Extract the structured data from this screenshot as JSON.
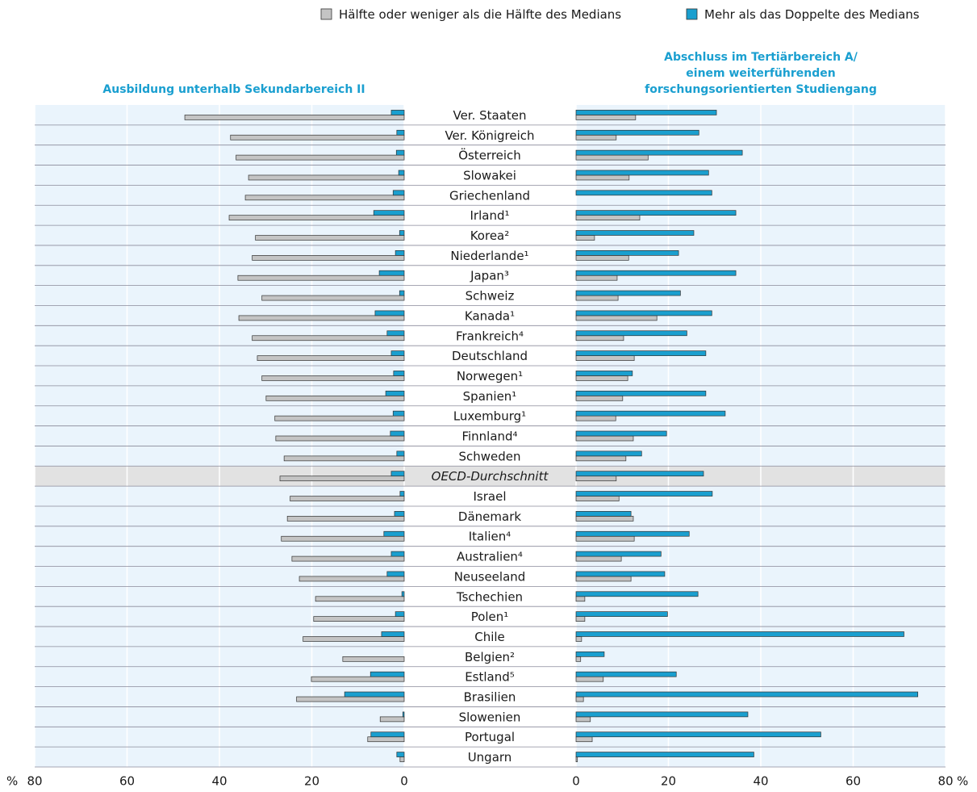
{
  "chart_data": {
    "type": "butterfly",
    "x_unit": "%",
    "legend": [
      {
        "name": "Hälfte oder weniger als die Hälfte des Medians",
        "color": "#c4c4c4"
      },
      {
        "name": "Mehr als das Doppelte des Medians",
        "color": "#1a9fcf"
      }
    ],
    "highlight_index": 18,
    "categories": [
      "Ver. Staaten",
      "Ver. Königreich",
      "Österreich",
      "Slowakei",
      "Griechenland",
      "Irland¹",
      "Korea²",
      "Niederlande¹",
      "Japan³",
      "Schweiz",
      "Kanada¹",
      "Frankreich⁴",
      "Deutschland",
      "Norwegen¹",
      "Spanien¹",
      "Luxemburg¹",
      "Finnland⁴",
      "Schweden",
      "OECD-Durchschnitt",
      "Israel",
      "Dänemark",
      "Italien⁴",
      "Australien⁴",
      "Neuseeland",
      "Tschechien",
      "Polen¹",
      "Chile",
      "Belgien²",
      "Estland⁵",
      "Brasilien",
      "Slowenien",
      "Portugal",
      "Ungarn"
    ],
    "panels": [
      {
        "title_lines": [
          "Ausbildung unterhalb Sekundarbereich II"
        ],
        "xlim": [
          80,
          0
        ],
        "xticks": [
          80,
          60,
          40,
          20,
          0
        ],
        "series": [
          {
            "values": [
              47.5,
              37.6,
              36.4,
              33.7,
              34.4,
              37.9,
              32.2,
              32.9,
              36.0,
              30.8,
              35.8,
              32.9,
              31.8,
              30.8,
              29.9,
              28.0,
              27.8,
              26.0,
              26.9,
              24.7,
              25.3,
              26.6,
              24.3,
              22.7,
              19.2,
              19.6,
              21.9,
              13.3,
              20.1,
              23.3,
              5.2,
              7.9,
              0.9
            ]
          },
          {
            "values": [
              2.8,
              1.6,
              1.7,
              1.2,
              2.4,
              6.6,
              1.0,
              1.9,
              5.4,
              1.0,
              6.3,
              3.7,
              2.8,
              2.3,
              4.0,
              2.4,
              3.0,
              1.6,
              2.8,
              0.9,
              2.1,
              4.4,
              2.8,
              3.7,
              0.5,
              1.9,
              4.9,
              null,
              7.3,
              12.9,
              0.3,
              7.2,
              1.6
            ]
          }
        ]
      },
      {
        "title_lines": [
          "Abschluss im Tertiärbereich A/",
          "einem weiterführenden",
          "forschungsorientierten Studiengang"
        ],
        "xlim": [
          0,
          80
        ],
        "xticks": [
          0,
          20,
          40,
          60,
          80
        ],
        "series": [
          {
            "values": [
              12.9,
              8.7,
              15.6,
              11.5,
              null,
              13.8,
              4.0,
              11.4,
              8.9,
              9.1,
              17.5,
              10.3,
              12.6,
              11.2,
              10.1,
              8.6,
              12.4,
              10.8,
              8.7,
              9.3,
              12.4,
              12.6,
              9.8,
              11.9,
              1.9,
              1.9,
              1.2,
              1.0,
              5.9,
              1.6,
              3.1,
              3.5,
              0.3
            ]
          },
          {
            "values": [
              30.4,
              26.6,
              36.0,
              28.7,
              29.4,
              34.6,
              25.5,
              22.2,
              34.6,
              22.6,
              29.4,
              24.0,
              28.1,
              12.2,
              28.1,
              32.3,
              19.6,
              14.2,
              27.6,
              29.5,
              11.9,
              24.5,
              18.4,
              19.2,
              26.4,
              19.8,
              71.0,
              6.1,
              21.7,
              74.0,
              37.2,
              53.0,
              38.5
            ]
          }
        ]
      }
    ]
  }
}
